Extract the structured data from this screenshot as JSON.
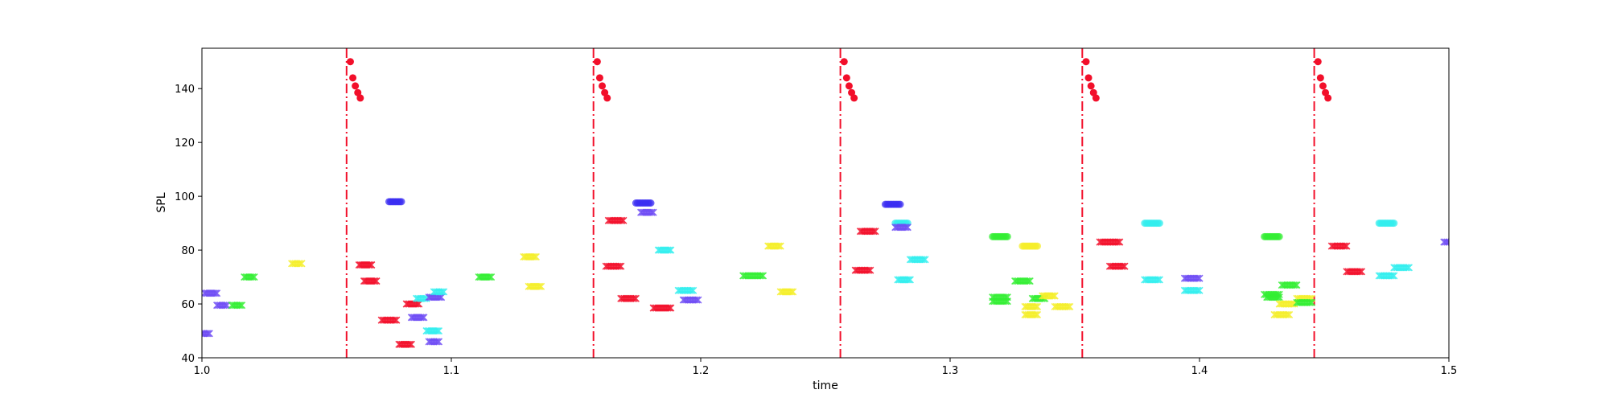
{
  "chart_data": {
    "type": "scatter",
    "xlabel": "time",
    "ylabel": "SPL",
    "xlim": [
      1.0,
      1.5
    ],
    "ylim": [
      40,
      155
    ],
    "x_ticks": [
      "1.0",
      "1.1",
      "1.2",
      "1.3",
      "1.4",
      "1.5"
    ],
    "y_ticks": [
      "40",
      "60",
      "80",
      "100",
      "120",
      "140"
    ],
    "grid": false,
    "vlines": {
      "color": "#f20f2a",
      "style": "dash-dot",
      "x": [
        1.058,
        1.157,
        1.256,
        1.353,
        1.446
      ]
    },
    "onset_dots": {
      "color": "#f20f2a",
      "groups": [
        {
          "x": [
            1.0595,
            1.0605,
            1.0615,
            1.0625,
            1.0635
          ],
          "y": [
            150,
            144,
            141,
            138.5,
            136.5
          ]
        },
        {
          "x": [
            1.1585,
            1.1595,
            1.1605,
            1.1615,
            1.1625
          ],
          "y": [
            150,
            144,
            141,
            138.5,
            136.5
          ]
        },
        {
          "x": [
            1.2575,
            1.2585,
            1.2595,
            1.2605,
            1.2615
          ],
          "y": [
            150,
            144,
            141,
            138.5,
            136.5
          ]
        },
        {
          "x": [
            1.3545,
            1.3555,
            1.3565,
            1.3575,
            1.3585
          ],
          "y": [
            150,
            144,
            141,
            138.5,
            136.5
          ]
        },
        {
          "x": [
            1.4475,
            1.4485,
            1.4495,
            1.4505,
            1.4515
          ],
          "y": [
            150,
            144,
            141,
            138.5,
            136.5
          ]
        }
      ]
    },
    "segments": [
      {
        "x0": 1.0,
        "x1": 1.003,
        "y": 49,
        "color": "#6f4cf5",
        "marker": "x"
      },
      {
        "x0": 1.001,
        "x1": 1.006,
        "y": 64,
        "color": "#6f4cf5",
        "marker": "x"
      },
      {
        "x0": 1.006,
        "x1": 1.01,
        "y": 59.5,
        "color": "#6f4cf5",
        "marker": "x"
      },
      {
        "x0": 1.012,
        "x1": 1.016,
        "y": 59.5,
        "color": "#33ee33",
        "marker": "x"
      },
      {
        "x0": 1.017,
        "x1": 1.021,
        "y": 70,
        "color": "#33ee33",
        "marker": "x"
      },
      {
        "x0": 1.036,
        "x1": 1.04,
        "y": 75,
        "color": "#f5ee2a",
        "marker": "x"
      },
      {
        "x0": 1.063,
        "x1": 1.068,
        "y": 74.5,
        "color": "#f20f2a",
        "marker": "x"
      },
      {
        "x0": 1.065,
        "x1": 1.07,
        "y": 68.5,
        "color": "#f20f2a",
        "marker": "x"
      },
      {
        "x0": 1.072,
        "x1": 1.078,
        "y": 54,
        "color": "#f20f2a",
        "marker": "x"
      },
      {
        "x0": 1.075,
        "x1": 1.08,
        "y": 98,
        "color": "#3b2ef2",
        "marker": "o"
      },
      {
        "x0": 1.079,
        "x1": 1.084,
        "y": 45,
        "color": "#f20f2a",
        "marker": "x"
      },
      {
        "x0": 1.082,
        "x1": 1.087,
        "y": 60,
        "color": "#f20f2a",
        "marker": "x"
      },
      {
        "x0": 1.084,
        "x1": 1.089,
        "y": 55,
        "color": "#6f4cf5",
        "marker": "x"
      },
      {
        "x0": 1.086,
        "x1": 1.09,
        "y": 62,
        "color": "#33eeee",
        "marker": "x"
      },
      {
        "x0": 1.09,
        "x1": 1.095,
        "y": 50,
        "color": "#33eeee",
        "marker": "x"
      },
      {
        "x0": 1.091,
        "x1": 1.096,
        "y": 62.5,
        "color": "#6f4cf5",
        "marker": "x"
      },
      {
        "x0": 1.093,
        "x1": 1.097,
        "y": 64.5,
        "color": "#33eeee",
        "marker": "x"
      },
      {
        "x0": 1.091,
        "x1": 1.095,
        "y": 46,
        "color": "#6f4cf5",
        "marker": "x"
      },
      {
        "x0": 1.111,
        "x1": 1.116,
        "y": 70,
        "color": "#33ee33",
        "marker": "x"
      },
      {
        "x0": 1.129,
        "x1": 1.134,
        "y": 77.5,
        "color": "#f5ee2a",
        "marker": "x"
      },
      {
        "x0": 1.131,
        "x1": 1.136,
        "y": 66.5,
        "color": "#f5ee2a",
        "marker": "x"
      },
      {
        "x0": 1.162,
        "x1": 1.168,
        "y": 74,
        "color": "#f20f2a",
        "marker": "x"
      },
      {
        "x0": 1.163,
        "x1": 1.169,
        "y": 91,
        "color": "#f20f2a",
        "marker": "x"
      },
      {
        "x0": 1.168,
        "x1": 1.174,
        "y": 62,
        "color": "#f20f2a",
        "marker": "x"
      },
      {
        "x0": 1.174,
        "x1": 1.18,
        "y": 97.5,
        "color": "#3b2ef2",
        "marker": "o"
      },
      {
        "x0": 1.176,
        "x1": 1.181,
        "y": 94,
        "color": "#6f4cf5",
        "marker": "x"
      },
      {
        "x0": 1.181,
        "x1": 1.188,
        "y": 58.5,
        "color": "#f20f2a",
        "marker": "x"
      },
      {
        "x0": 1.183,
        "x1": 1.188,
        "y": 80,
        "color": "#33eeee",
        "marker": "x"
      },
      {
        "x0": 1.191,
        "x1": 1.197,
        "y": 65,
        "color": "#33eeee",
        "marker": "x"
      },
      {
        "x0": 1.193,
        "x1": 1.199,
        "y": 61.5,
        "color": "#6f4cf5",
        "marker": "x"
      },
      {
        "x0": 1.217,
        "x1": 1.225,
        "y": 70.5,
        "color": "#33ee33",
        "marker": "x"
      },
      {
        "x0": 1.227,
        "x1": 1.232,
        "y": 81.5,
        "color": "#f5ee2a",
        "marker": "x"
      },
      {
        "x0": 1.232,
        "x1": 1.237,
        "y": 64.5,
        "color": "#f5ee2a",
        "marker": "x"
      },
      {
        "x0": 1.262,
        "x1": 1.268,
        "y": 72.5,
        "color": "#f20f2a",
        "marker": "x"
      },
      {
        "x0": 1.264,
        "x1": 1.27,
        "y": 87,
        "color": "#f20f2a",
        "marker": "x"
      },
      {
        "x0": 1.274,
        "x1": 1.28,
        "y": 97,
        "color": "#3b2ef2",
        "marker": "o"
      },
      {
        "x0": 1.278,
        "x1": 1.283,
        "y": 90,
        "color": "#33eeee",
        "marker": "o"
      },
      {
        "x0": 1.278,
        "x1": 1.283,
        "y": 88.5,
        "color": "#6f4cf5",
        "marker": "x"
      },
      {
        "x0": 1.279,
        "x1": 1.284,
        "y": 69,
        "color": "#33eeee",
        "marker": "x"
      },
      {
        "x0": 1.284,
        "x1": 1.29,
        "y": 76.5,
        "color": "#33eeee",
        "marker": "x"
      },
      {
        "x0": 1.317,
        "x1": 1.323,
        "y": 85,
        "color": "#33ee33",
        "marker": "o"
      },
      {
        "x0": 1.317,
        "x1": 1.323,
        "y": 62.5,
        "color": "#33ee33",
        "marker": "x"
      },
      {
        "x0": 1.317,
        "x1": 1.323,
        "y": 61,
        "color": "#33ee33",
        "marker": "x"
      },
      {
        "x0": 1.326,
        "x1": 1.332,
        "y": 68.5,
        "color": "#33ee33",
        "marker": "x"
      },
      {
        "x0": 1.329,
        "x1": 1.335,
        "y": 81.5,
        "color": "#f5ee2a",
        "marker": "o"
      },
      {
        "x0": 1.33,
        "x1": 1.335,
        "y": 59,
        "color": "#f5ee2a",
        "marker": "x"
      },
      {
        "x0": 1.33,
        "x1": 1.335,
        "y": 56,
        "color": "#f5ee2a",
        "marker": "x"
      },
      {
        "x0": 1.333,
        "x1": 1.338,
        "y": 62,
        "color": "#33ee33",
        "marker": "x"
      },
      {
        "x0": 1.337,
        "x1": 1.342,
        "y": 63,
        "color": "#f5ee2a",
        "marker": "x"
      },
      {
        "x0": 1.342,
        "x1": 1.348,
        "y": 59,
        "color": "#f5ee2a",
        "marker": "x"
      },
      {
        "x0": 1.36,
        "x1": 1.368,
        "y": 83,
        "color": "#f20f2a",
        "marker": "x"
      },
      {
        "x0": 1.364,
        "x1": 1.37,
        "y": 74,
        "color": "#f20f2a",
        "marker": "x"
      },
      {
        "x0": 1.378,
        "x1": 1.384,
        "y": 90,
        "color": "#33eeee",
        "marker": "o"
      },
      {
        "x0": 1.378,
        "x1": 1.384,
        "y": 69,
        "color": "#33eeee",
        "marker": "x"
      },
      {
        "x0": 1.394,
        "x1": 1.4,
        "y": 65,
        "color": "#33eeee",
        "marker": "x"
      },
      {
        "x0": 1.394,
        "x1": 1.4,
        "y": 69.5,
        "color": "#6f4cf5",
        "marker": "x"
      },
      {
        "x0": 1.426,
        "x1": 1.432,
        "y": 85,
        "color": "#33ee33",
        "marker": "o"
      },
      {
        "x0": 1.426,
        "x1": 1.432,
        "y": 63.5,
        "color": "#33ee33",
        "marker": "x"
      },
      {
        "x0": 1.427,
        "x1": 1.432,
        "y": 62.5,
        "color": "#33ee33",
        "marker": "x"
      },
      {
        "x0": 1.43,
        "x1": 1.436,
        "y": 56,
        "color": "#f5ee2a",
        "marker": "x"
      },
      {
        "x0": 1.432,
        "x1": 1.438,
        "y": 60,
        "color": "#f5ee2a",
        "marker": "x"
      },
      {
        "x0": 1.433,
        "x1": 1.439,
        "y": 67,
        "color": "#33ee33",
        "marker": "x"
      },
      {
        "x0": 1.439,
        "x1": 1.445,
        "y": 62,
        "color": "#f5ee2a",
        "marker": "x"
      },
      {
        "x0": 1.439,
        "x1": 1.445,
        "y": 60.5,
        "color": "#33ee33",
        "marker": "x"
      },
      {
        "x0": 1.453,
        "x1": 1.459,
        "y": 81.5,
        "color": "#f20f2a",
        "marker": "x"
      },
      {
        "x0": 1.459,
        "x1": 1.465,
        "y": 72,
        "color": "#f20f2a",
        "marker": "x"
      },
      {
        "x0": 1.472,
        "x1": 1.478,
        "y": 90,
        "color": "#33eeee",
        "marker": "o"
      },
      {
        "x0": 1.472,
        "x1": 1.478,
        "y": 70.5,
        "color": "#33eeee",
        "marker": "x"
      },
      {
        "x0": 1.478,
        "x1": 1.484,
        "y": 73.5,
        "color": "#33eeee",
        "marker": "x"
      },
      {
        "x0": 1.498,
        "x1": 1.5,
        "y": 83,
        "color": "#6f4cf5",
        "marker": "x"
      }
    ]
  }
}
